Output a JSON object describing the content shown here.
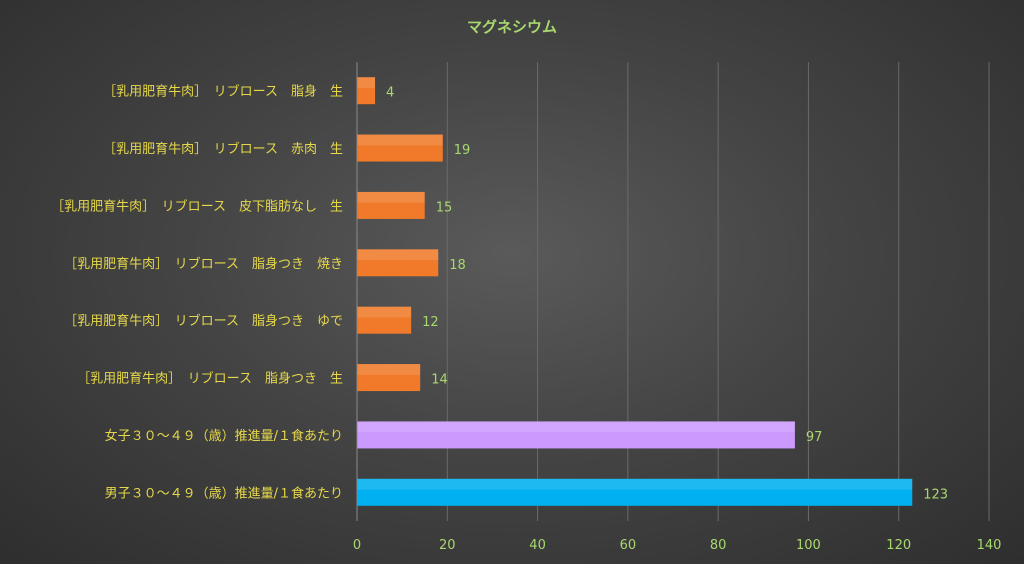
{
  "chart_data": {
    "type": "bar",
    "orientation": "horizontal",
    "title": "マグネシウム",
    "categories": [
      "［乳用肥育牛肉］　リブロース　脂身　生",
      "［乳用肥育牛肉］　リブロース　赤肉　生",
      "［乳用肥育牛肉］　リブロース　皮下脂肪なし　生",
      "［乳用肥育牛肉］　リブロース　脂身つき　焼き",
      "［乳用肥育牛肉］　リブロース　脂身つき　ゆで",
      "［乳用肥育牛肉］　リブロース　脂身つき　生",
      "女子３０～４９（歳）推進量/１食あたり",
      "男子３０～４９（歳）推進量/１食あたり"
    ],
    "values": [
      4,
      19,
      15,
      18,
      12,
      14,
      97,
      123
    ],
    "bar_colors": [
      "#f07a2a",
      "#f07a2a",
      "#f07a2a",
      "#f07a2a",
      "#f07a2a",
      "#f07a2a",
      "#cc99ff",
      "#00b0f0"
    ],
    "xlim": [
      0,
      140
    ],
    "xticks": [
      0,
      20,
      40,
      60,
      80,
      100,
      120,
      140
    ],
    "grid": true,
    "colors": {
      "title": "#a8d86e",
      "category_label": "#e6d84a",
      "tick_label": "#a8d86e",
      "data_label": "#a8d86e",
      "gridline": "#6a6a6a"
    }
  }
}
